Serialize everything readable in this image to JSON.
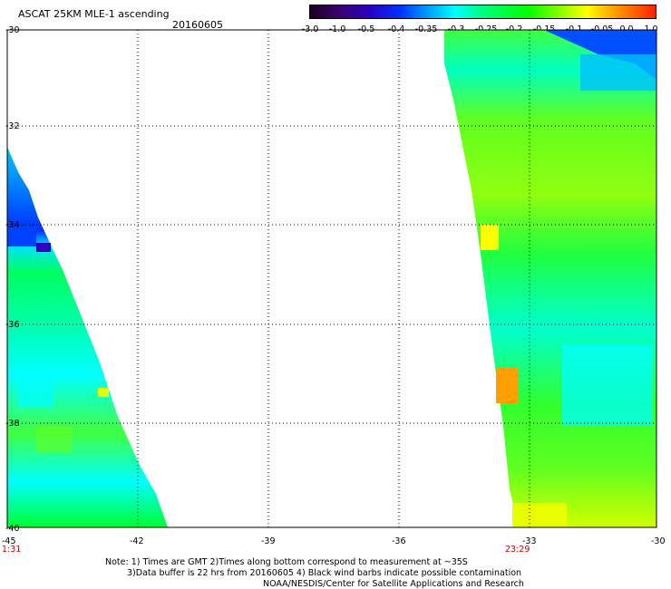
{
  "header": {
    "title": "ASCAT 25KM MLE-1 ascending",
    "date": "20160605"
  },
  "colorbar": {
    "ticks": [
      "-3.0",
      "-1.0",
      "-0.5",
      "-0.4",
      "-0.35",
      "-0.3",
      "-0.25",
      "-0.2",
      "-0.15",
      "-0.1",
      "-0.05",
      "0.0",
      "1.0"
    ]
  },
  "axes": {
    "x_ticks": [
      "-45",
      "-42",
      "-39",
      "-36",
      "-33",
      "-30"
    ],
    "y_ticks": [
      "-30",
      "-32",
      "-34",
      "-36",
      "-38",
      "-40"
    ],
    "pass_times": [
      "1:31",
      "23:29"
    ]
  },
  "notes": {
    "line1": "Note: 1) Times are GMT 2)Times along bottom correspond to measurement at ~35S",
    "line2": "3)Data buffer is 22 hrs from 20160605 4) Black wind barbs indicate possible contamination",
    "line3": "NOAA/NESDIS/Center for Satellite Applications and Research"
  },
  "colors": {
    "low": "#0030ff",
    "mid": "#00ffff",
    "green": "#00ff00",
    "high": "#ffff00",
    "peak": "#ffa000"
  }
}
